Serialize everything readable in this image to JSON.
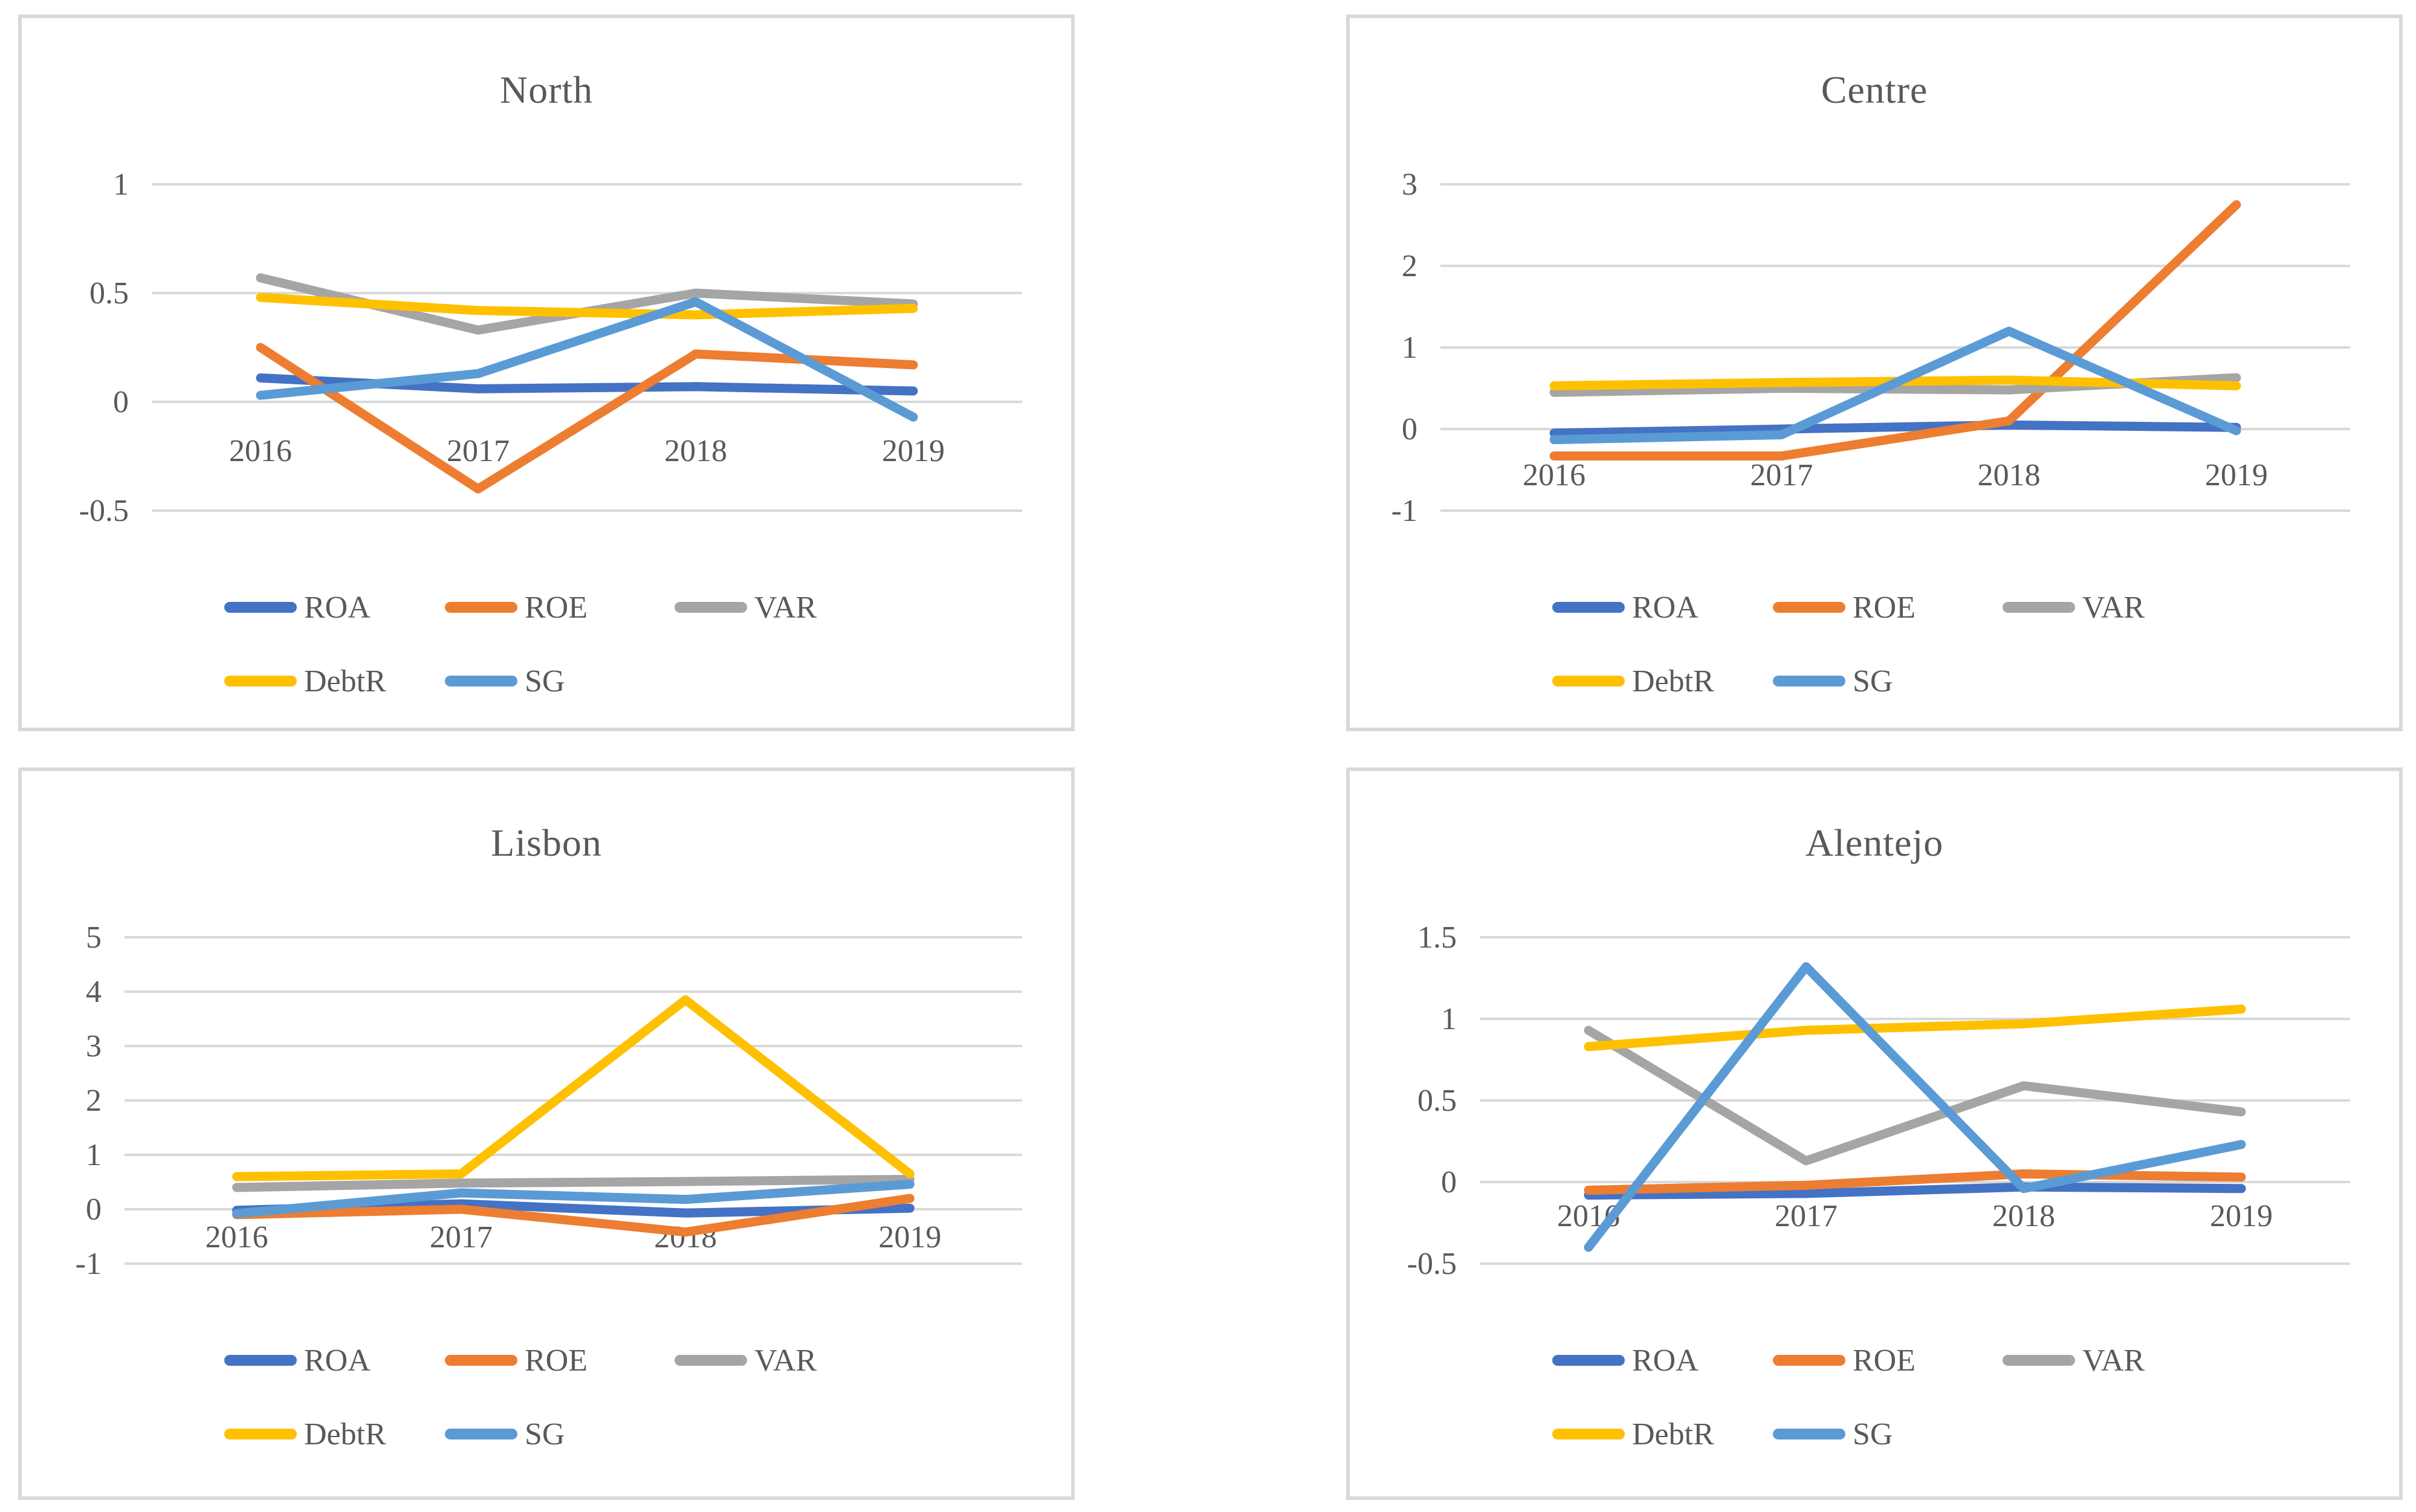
{
  "figure": {
    "background": "#ffffff",
    "panel_border_color": "#d9d9d9",
    "gridline_color": "#d9d9d9",
    "text_color": "#595959"
  },
  "legend": {
    "rows": [
      [
        "ROA",
        "ROE",
        "VAR"
      ],
      [
        "DebtR",
        "SG"
      ]
    ]
  },
  "series_colors": {
    "ROA": "#4472C4",
    "ROE": "#ED7D31",
    "VAR": "#A5A5A5",
    "DebtR": "#FFC000",
    "SG": "#5B9BD5"
  },
  "chart_data": [
    {
      "type": "line",
      "title": "North",
      "categories": [
        "2016",
        "2017",
        "2018",
        "2019"
      ],
      "yticks": [
        1,
        0.5,
        0,
        -0.5
      ],
      "ylim": [
        -0.5,
        1
      ],
      "grid": true,
      "legend_position": "bottom",
      "series": [
        {
          "name": "ROA",
          "color": "#4472C4",
          "values": [
            0.11,
            0.06,
            0.07,
            0.05
          ]
        },
        {
          "name": "ROE",
          "color": "#ED7D31",
          "values": [
            0.25,
            -0.4,
            0.22,
            0.17
          ]
        },
        {
          "name": "VAR",
          "color": "#A5A5A5",
          "values": [
            0.57,
            0.33,
            0.5,
            0.45
          ]
        },
        {
          "name": "DebtR",
          "color": "#FFC000",
          "values": [
            0.48,
            0.42,
            0.4,
            0.43
          ]
        },
        {
          "name": "SG",
          "color": "#5B9BD5",
          "values": [
            0.03,
            0.13,
            0.46,
            -0.07
          ]
        }
      ]
    },
    {
      "type": "line",
      "title": "Centre",
      "categories": [
        "2016",
        "2017",
        "2018",
        "2019"
      ],
      "yticks": [
        3,
        2,
        1,
        0,
        -1
      ],
      "ylim": [
        -1,
        3
      ],
      "grid": true,
      "legend_position": "bottom",
      "series": [
        {
          "name": "ROA",
          "color": "#4472C4",
          "values": [
            -0.05,
            0.0,
            0.05,
            0.02
          ]
        },
        {
          "name": "ROE",
          "color": "#ED7D31",
          "values": [
            -0.33,
            -0.33,
            0.1,
            2.75
          ]
        },
        {
          "name": "VAR",
          "color": "#A5A5A5",
          "values": [
            0.45,
            0.5,
            0.48,
            0.63
          ]
        },
        {
          "name": "DebtR",
          "color": "#FFC000",
          "values": [
            0.53,
            0.57,
            0.6,
            0.53
          ]
        },
        {
          "name": "SG",
          "color": "#5B9BD5",
          "values": [
            -0.13,
            -0.07,
            1.2,
            -0.02
          ]
        }
      ]
    },
    {
      "type": "line",
      "title": "Lisbon",
      "categories": [
        "2016",
        "2017",
        "2018",
        "2019"
      ],
      "yticks": [
        5,
        4,
        3,
        2,
        1,
        0,
        -1
      ],
      "ylim": [
        -1,
        5
      ],
      "grid": true,
      "legend_position": "bottom",
      "series": [
        {
          "name": "ROA",
          "color": "#4472C4",
          "values": [
            -0.02,
            0.1,
            -0.07,
            0.02
          ]
        },
        {
          "name": "ROE",
          "color": "#ED7D31",
          "values": [
            -0.1,
            0.0,
            -0.42,
            0.2
          ]
        },
        {
          "name": "VAR",
          "color": "#A5A5A5",
          "values": [
            0.4,
            0.48,
            0.51,
            0.55
          ]
        },
        {
          "name": "DebtR",
          "color": "#FFC000",
          "values": [
            0.6,
            0.65,
            3.85,
            0.65
          ]
        },
        {
          "name": "SG",
          "color": "#5B9BD5",
          "values": [
            -0.08,
            0.3,
            0.18,
            0.46
          ]
        }
      ]
    },
    {
      "type": "line",
      "title": "Alentejo",
      "categories": [
        "2016",
        "2017",
        "2018",
        "2019"
      ],
      "yticks": [
        1.5,
        1,
        0.5,
        0,
        -0.5
      ],
      "ylim": [
        -0.5,
        1.5
      ],
      "grid": true,
      "legend_position": "bottom",
      "series": [
        {
          "name": "ROA",
          "color": "#4472C4",
          "values": [
            -0.08,
            -0.07,
            -0.03,
            -0.04
          ]
        },
        {
          "name": "ROE",
          "color": "#ED7D31",
          "values": [
            -0.05,
            -0.02,
            0.05,
            0.03
          ]
        },
        {
          "name": "VAR",
          "color": "#A5A5A5",
          "values": [
            0.93,
            0.13,
            0.59,
            0.43
          ]
        },
        {
          "name": "DebtR",
          "color": "#FFC000",
          "values": [
            0.83,
            0.93,
            0.97,
            1.06
          ]
        },
        {
          "name": "SG",
          "color": "#5B9BD5",
          "values": [
            -0.4,
            1.32,
            -0.04,
            0.23
          ]
        }
      ]
    }
  ]
}
